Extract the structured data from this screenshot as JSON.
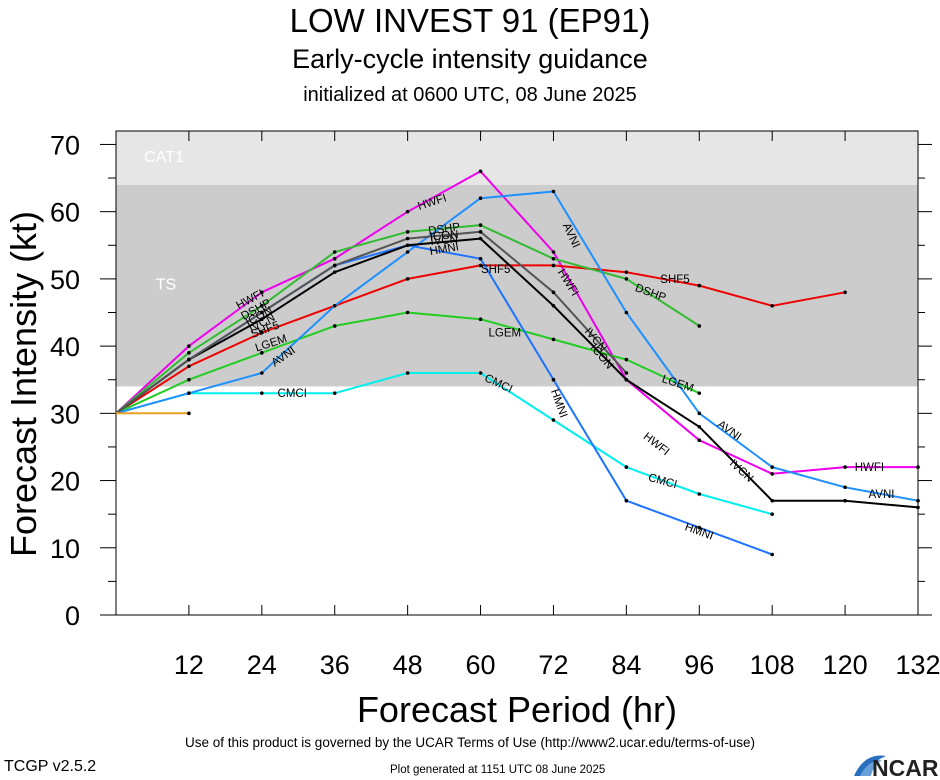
{
  "header": {
    "title": "LOW INVEST 91 (EP91)",
    "subtitle": "Early-cycle intensity guidance",
    "initialized": "initialized at 0600 UTC, 08 June 2025"
  },
  "footer": {
    "terms": "Use of this product is governed by the UCAR Terms of Use (http://www2.ucar.edu/terms-of-use)",
    "version": "TCGP v2.5.2",
    "generated": "Plot generated at 1151 UTC   08 June 2025",
    "logo_text": "NCAR"
  },
  "chart_data": {
    "type": "line",
    "xlabel": "Forecast Period (hr)",
    "ylabel": "Forecast Intensity (kt)",
    "xlim": [
      0,
      132
    ],
    "ylim": [
      0,
      72
    ],
    "xticks": [
      12,
      24,
      36,
      48,
      60,
      72,
      84,
      96,
      108,
      120,
      132
    ],
    "yticks": [
      0,
      10,
      20,
      30,
      40,
      50,
      60,
      70
    ],
    "bands": [
      {
        "name": "TS",
        "from": 34,
        "to": 64,
        "color": "#cccccc"
      },
      {
        "name": "CAT1",
        "from": 64,
        "to": 72,
        "color": "#e6e6e6"
      }
    ],
    "series": [
      {
        "name": "HWFI",
        "color": "#ee00ee",
        "x": [
          0,
          12,
          24,
          36,
          48,
          60,
          72,
          84,
          96,
          108,
          120,
          132
        ],
        "y": [
          30,
          40,
          48,
          53,
          60,
          66,
          54,
          35,
          26,
          21,
          22,
          22
        ]
      },
      {
        "name": "SHF5",
        "color": "#ee0000",
        "x": [
          0,
          12,
          24,
          36,
          48,
          60,
          72,
          84,
          96,
          108,
          120
        ],
        "y": [
          30,
          37,
          42,
          46,
          50,
          52,
          52,
          51,
          49,
          46,
          48
        ]
      },
      {
        "name": "LGEM",
        "color": "#22cc22",
        "x": [
          0,
          12,
          24,
          36,
          48,
          60,
          72,
          84,
          96
        ],
        "y": [
          30,
          35,
          39,
          43,
          45,
          44,
          41,
          38,
          33
        ]
      },
      {
        "name": "DSHP",
        "color": "#33bb33",
        "x": [
          0,
          12,
          24,
          36,
          48,
          60,
          72,
          84,
          96
        ],
        "y": [
          30,
          39,
          46,
          54,
          57,
          58,
          53,
          50,
          43
        ]
      },
      {
        "name": "CMCI",
        "color": "#00eeee",
        "x": [
          0,
          12,
          24,
          36,
          48,
          60,
          72,
          84,
          96,
          108
        ],
        "y": [
          30,
          33,
          33,
          33,
          36,
          36,
          29,
          22,
          18,
          15
        ]
      },
      {
        "name": "AVNI",
        "color": "#1e90ff",
        "x": [
          0,
          12,
          24,
          36,
          48,
          60,
          72,
          84,
          96,
          108,
          120,
          132
        ],
        "y": [
          30,
          33,
          36,
          46,
          54,
          62,
          63,
          45,
          30,
          22,
          19,
          17
        ]
      },
      {
        "name": "HMNI",
        "color": "#1e74ff",
        "x": [
          0,
          12,
          24,
          36,
          48,
          60,
          72,
          84,
          96,
          108
        ],
        "y": [
          30,
          38,
          45,
          52,
          55,
          53,
          35,
          17,
          13,
          9
        ]
      },
      {
        "name": "IVCN",
        "color": "#000000",
        "x": [
          0,
          12,
          24,
          36,
          48,
          60,
          72,
          84,
          96,
          108,
          120,
          132
        ],
        "y": [
          30,
          38,
          44,
          51,
          55,
          56,
          46,
          35,
          28,
          17,
          17,
          16
        ]
      },
      {
        "name": "ICON",
        "color": "#555555",
        "x": [
          0,
          12,
          24,
          36,
          48,
          60,
          72,
          84
        ],
        "y": [
          30,
          38,
          45,
          52,
          56,
          57,
          48,
          36
        ]
      },
      {
        "name": "",
        "color": "#e8a020",
        "x": [
          0,
          12
        ],
        "y": [
          30,
          30
        ]
      }
    ],
    "line_labels": [
      {
        "text": "HWFI",
        "x": 22,
        "y": 47,
        "angle": -28
      },
      {
        "text": "HWFI",
        "x": 52,
        "y": 61.5,
        "angle": -18
      },
      {
        "text": "HWFI",
        "x": 74.5,
        "y": 49.5,
        "angle": 58
      },
      {
        "text": "HWFI",
        "x": 89,
        "y": 25.5,
        "angle": 38
      },
      {
        "text": "HWFI",
        "x": 124,
        "y": 22,
        "angle": 0
      },
      {
        "text": "SHF5",
        "x": 24.5,
        "y": 42.5,
        "angle": -20
      },
      {
        "text": "SHF5",
        "x": 62.5,
        "y": 51.5,
        "angle": 0
      },
      {
        "text": "SHF5",
        "x": 92,
        "y": 50,
        "angle": 0
      },
      {
        "text": "LGEM",
        "x": 25.5,
        "y": 40.5,
        "angle": -18
      },
      {
        "text": "LGEM",
        "x": 64,
        "y": 42,
        "angle": 0
      },
      {
        "text": "LGEM",
        "x": 92.5,
        "y": 34.5,
        "angle": 18
      },
      {
        "text": "AVNI",
        "x": 27.5,
        "y": 38.5,
        "angle": -35
      },
      {
        "text": "AVNI",
        "x": 75,
        "y": 56.5,
        "angle": 65
      },
      {
        "text": "AVNI",
        "x": 101,
        "y": 27.5,
        "angle": 35
      },
      {
        "text": "AVNI",
        "x": 126,
        "y": 18,
        "angle": 0
      },
      {
        "text": "DSHP",
        "x": 23,
        "y": 45.5,
        "angle": -28
      },
      {
        "text": "DSHP",
        "x": 54,
        "y": 57.5,
        "angle": -8
      },
      {
        "text": "DSHP",
        "x": 88,
        "y": 48,
        "angle": 20
      },
      {
        "text": "ICON",
        "x": 23.5,
        "y": 44.5,
        "angle": -28
      },
      {
        "text": "ICON",
        "x": 54,
        "y": 56.5,
        "angle": -5
      },
      {
        "text": "ICON",
        "x": 80,
        "y": 38.5,
        "angle": 50
      },
      {
        "text": "IVCN",
        "x": 24,
        "y": 43.5,
        "angle": -28
      },
      {
        "text": "IVCN",
        "x": 54,
        "y": 55.8,
        "angle": -5
      },
      {
        "text": "IVCN",
        "x": 79,
        "y": 41,
        "angle": 50
      },
      {
        "text": "IVCN",
        "x": 103,
        "y": 21.5,
        "angle": 42
      },
      {
        "text": "HMNI",
        "x": 54,
        "y": 54.5,
        "angle": -10
      },
      {
        "text": "HMNI",
        "x": 73,
        "y": 31.5,
        "angle": 70
      },
      {
        "text": "HMNI",
        "x": 96,
        "y": 12.5,
        "angle": 20
      },
      {
        "text": "CMCI",
        "x": 29,
        "y": 33,
        "angle": 0
      },
      {
        "text": "CMCI",
        "x": 63,
        "y": 34.5,
        "angle": 25
      },
      {
        "text": "CMCI",
        "x": 90,
        "y": 20,
        "angle": 15
      }
    ]
  }
}
